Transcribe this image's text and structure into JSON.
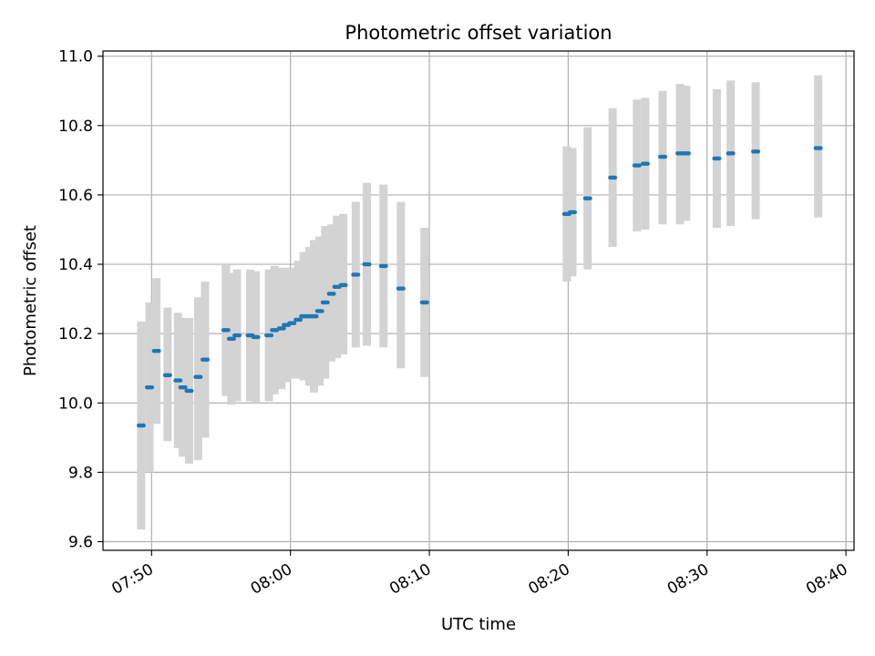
{
  "chart_data": {
    "type": "scatter",
    "title": "Photometric offset variation",
    "xlabel": "UTC time",
    "ylabel": "Photometric offset",
    "x_ticks": [
      "07:50",
      "08:00",
      "08:10",
      "08:20",
      "08:30",
      "08:40"
    ],
    "y_ticks": [
      "9.6",
      "9.8",
      "10.0",
      "10.2",
      "10.4",
      "10.6",
      "10.8",
      "11.0"
    ],
    "xlim": [
      "07:46:30",
      "08:40:35"
    ],
    "ylim": [
      9.575,
      11.015
    ],
    "grid": true,
    "legend": "none",
    "colors": {
      "points": "#1f77b4",
      "error_bars": "#d3d3d3",
      "grid": "#b0b0b0"
    },
    "series": [
      {
        "x": [
          "07:49:15",
          "07:49:51",
          "07:50:21",
          "07:51:09",
          "07:51:54",
          "07:52:15",
          "07:52:42",
          "07:53:21",
          "07:53:51",
          "07:55:21",
          "07:55:45",
          "07:56:09",
          "07:57:06",
          "07:57:30",
          "07:58:27",
          "07:58:51",
          "07:59:21",
          "07:59:42",
          "08:00:06",
          "08:00:33",
          "08:00:57",
          "08:01:21",
          "08:01:42",
          "08:02:06",
          "08:02:30",
          "08:02:57",
          "08:03:21",
          "08:03:48",
          "08:04:42",
          "08:05:30",
          "08:06:42",
          "08:07:57",
          "08:09:39",
          "08:19:54",
          "08:20:18",
          "08:21:24",
          "08:23:12",
          "08:24:57",
          "08:25:33",
          "08:26:48",
          "08:28:03",
          "08:28:30",
          "08:30:42",
          "08:31:42",
          "08:33:30",
          "08:38:00"
        ],
        "y": [
          9.935,
          10.045,
          10.15,
          10.08,
          10.065,
          10.045,
          10.035,
          10.075,
          10.125,
          10.21,
          10.185,
          10.195,
          10.195,
          10.19,
          10.195,
          10.21,
          10.215,
          10.225,
          10.23,
          10.24,
          10.25,
          10.25,
          10.25,
          10.265,
          10.29,
          10.315,
          10.335,
          10.34,
          10.37,
          10.4,
          10.395,
          10.33,
          10.29,
          10.545,
          10.55,
          10.59,
          10.65,
          10.685,
          10.69,
          10.71,
          10.72,
          10.72,
          10.705,
          10.72,
          10.725,
          10.735
        ],
        "y_lower": [
          9.635,
          9.8,
          9.94,
          9.89,
          9.87,
          9.845,
          9.825,
          9.835,
          9.9,
          10.02,
          9.995,
          10.005,
          10.005,
          10.0,
          10.005,
          10.025,
          10.04,
          10.06,
          10.07,
          10.07,
          10.065,
          10.05,
          10.03,
          10.05,
          10.07,
          10.12,
          10.13,
          10.14,
          10.16,
          10.165,
          10.16,
          10.1,
          10.075,
          10.35,
          10.365,
          10.385,
          10.45,
          10.495,
          10.5,
          10.515,
          10.515,
          10.525,
          10.505,
          10.51,
          10.53,
          10.535
        ],
        "y_upper": [
          10.235,
          10.29,
          10.36,
          10.275,
          10.26,
          10.245,
          10.245,
          10.305,
          10.35,
          10.4,
          10.375,
          10.385,
          10.385,
          10.38,
          10.385,
          10.395,
          10.39,
          10.39,
          10.39,
          10.41,
          10.435,
          10.45,
          10.47,
          10.48,
          10.51,
          10.515,
          10.54,
          10.545,
          10.58,
          10.635,
          10.63,
          10.58,
          10.505,
          10.74,
          10.735,
          10.795,
          10.85,
          10.875,
          10.88,
          10.9,
          10.92,
          10.915,
          10.905,
          10.93,
          10.925,
          10.945
        ]
      }
    ]
  }
}
